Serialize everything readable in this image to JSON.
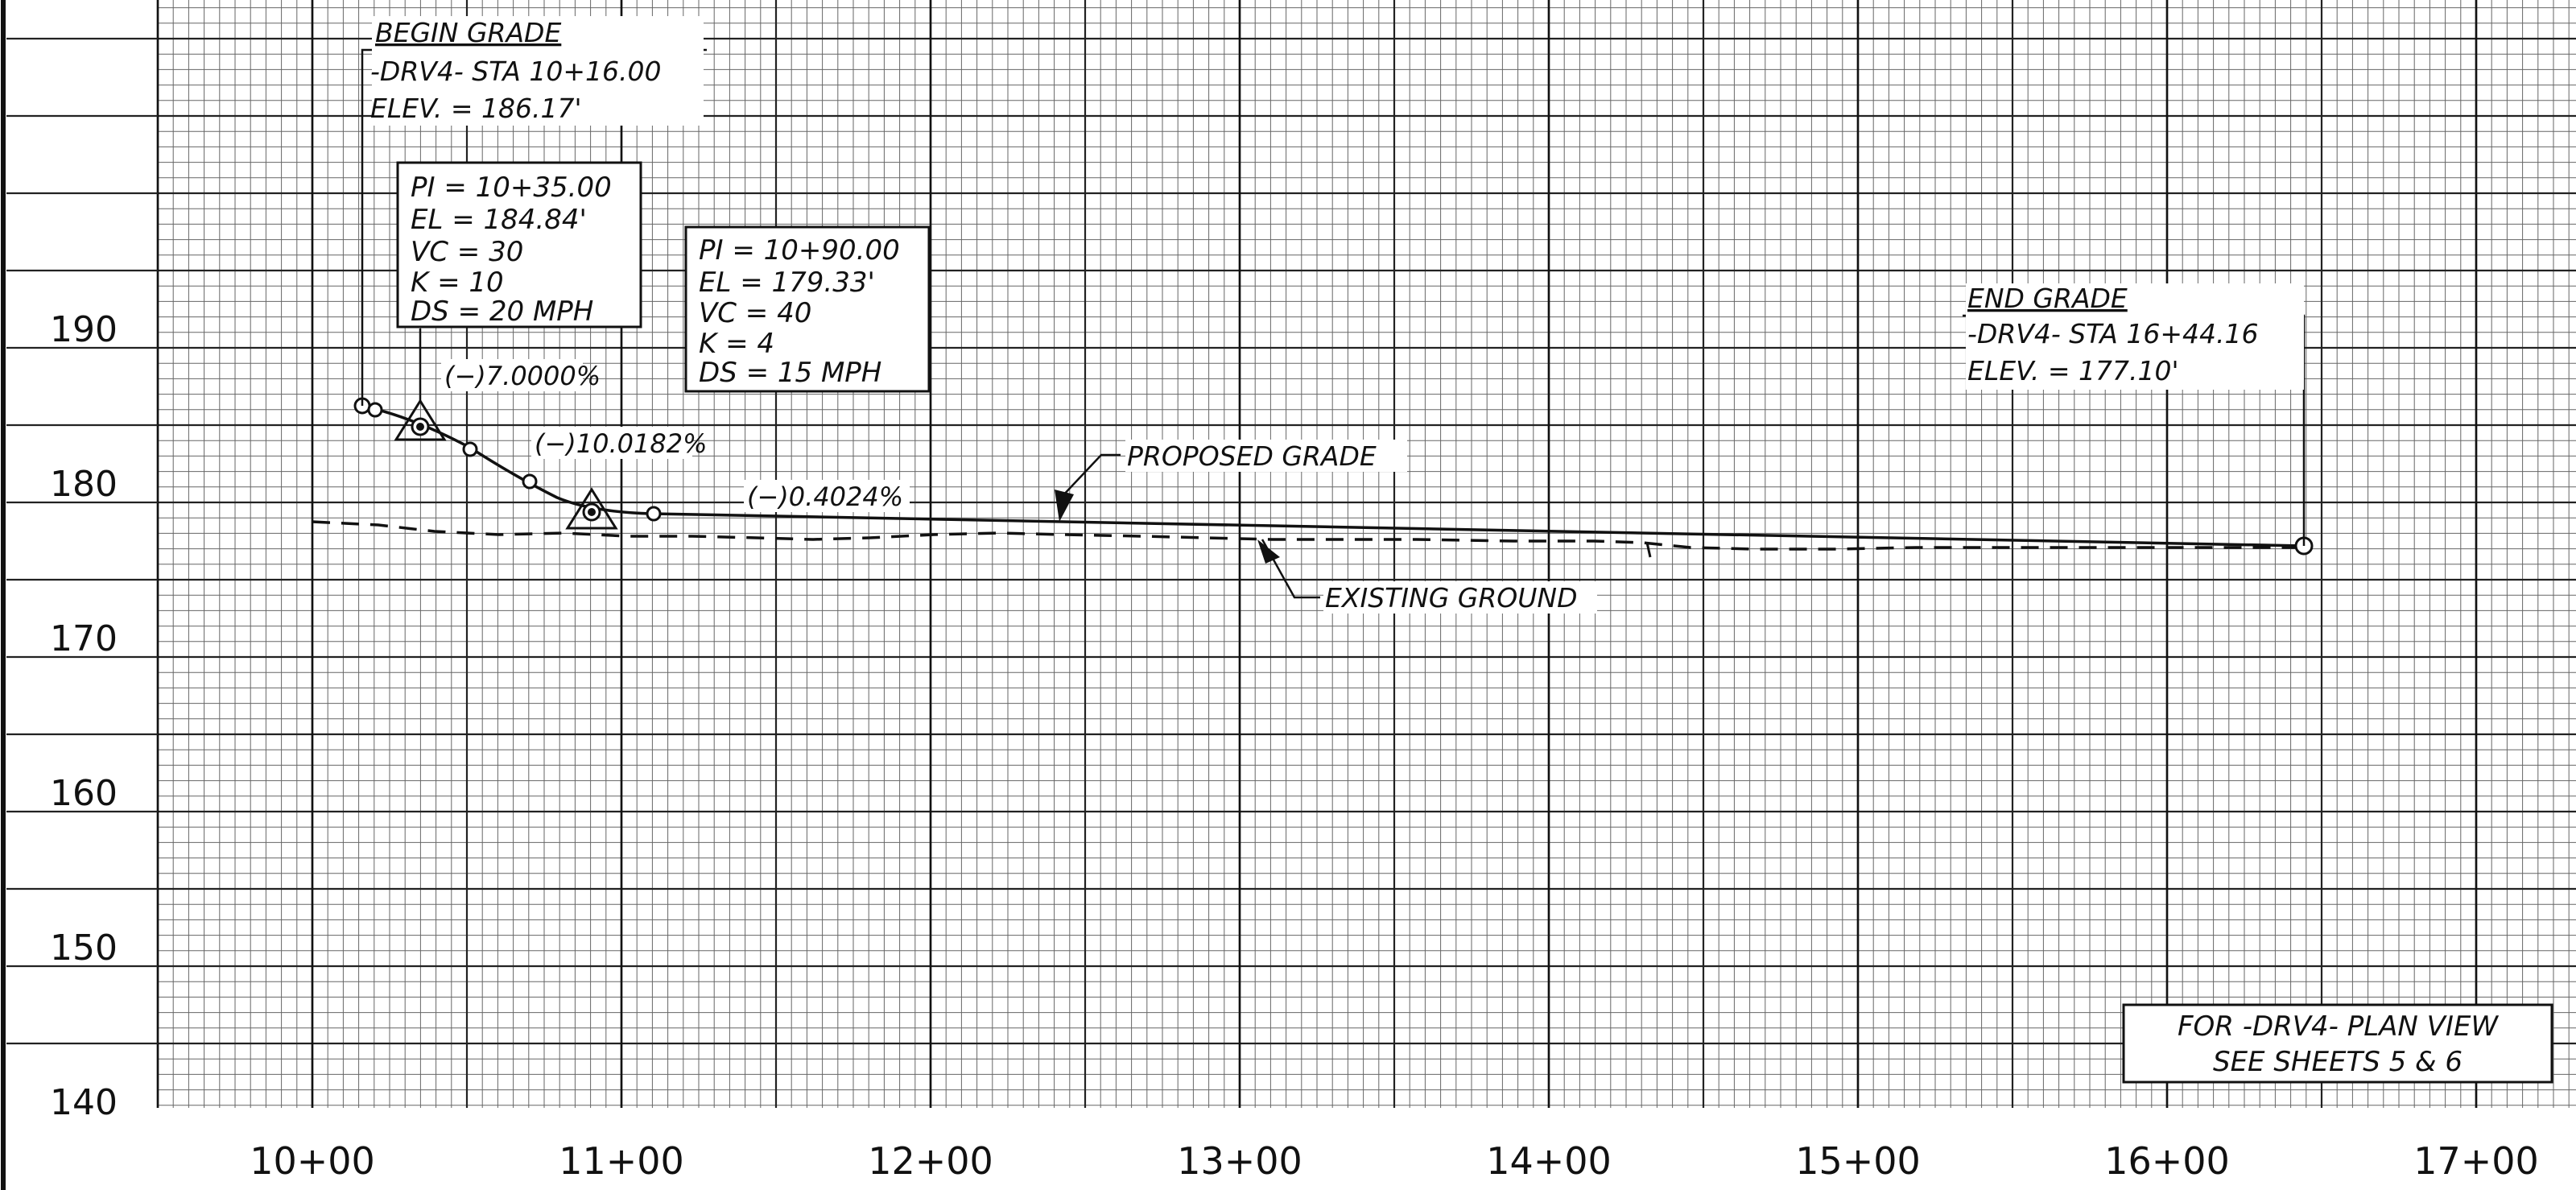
{
  "sheet": {
    "stations": [
      "10+00",
      "11+00",
      "12+00",
      "13+00",
      "14+00",
      "15+00",
      "16+00",
      "17+00"
    ],
    "elevations": [
      "190",
      "180",
      "170",
      "160",
      "150",
      "140"
    ]
  },
  "begin_grade": {
    "title": "BEGIN GRADE",
    "station": "-DRV4-  STA  10+16.00",
    "elevation": "ELEV. =  186.17'"
  },
  "pi_1": {
    "lines": [
      "PI  =  10+35.00",
      "EL  =  184.84'",
      "VC  =  30",
      "K  =  10",
      "DS  =  20  MPH"
    ]
  },
  "pi_2": {
    "lines": [
      "PI  =  10+90.00",
      "EL  =  179.33'",
      "VC  =  40",
      "K  =  4",
      "DS  =  15  MPH"
    ]
  },
  "grades": {
    "g1": "(−)7.0000%",
    "g2": "(−)10.0182%",
    "g3": "(−)0.4024%"
  },
  "labels": {
    "proposed": "PROPOSED  GRADE",
    "existing": "EXISTING  GROUND"
  },
  "end_grade": {
    "title": "END  GRADE",
    "station": "-DRV4-  STA  16+44.16",
    "elevation": "ELEV. =  177.10'"
  },
  "note": {
    "line1": "FOR  -DRV4-  PLAN  VIEW",
    "line2": "SEE  SHEETS  5  &  6"
  },
  "colors": {
    "ink": "#111111",
    "grid_minor": "#444444",
    "paper": "#ffffff"
  }
}
